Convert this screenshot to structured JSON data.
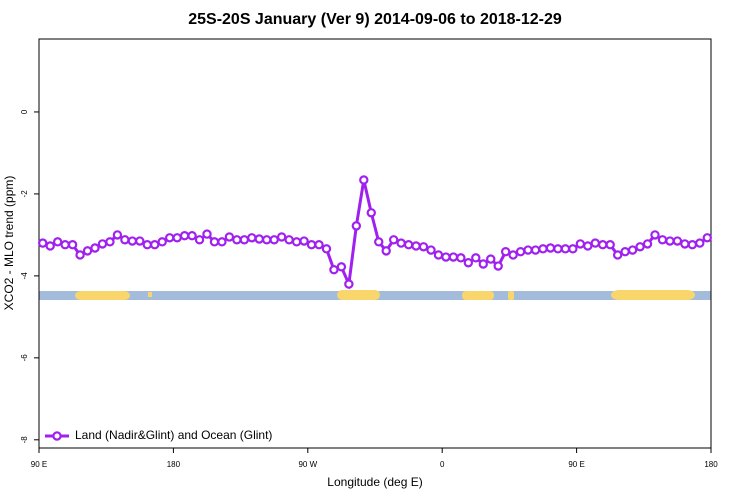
{
  "chart_data": {
    "type": "line",
    "title": "25S-20S January (Ver 9)   2014-09-06 to 2018-12-29",
    "x_label": "Longitude (deg E)",
    "y_label": "XCO2 - MLO trend (ppm)",
    "xlim": [
      90,
      540
    ],
    "xticks": [
      {
        "value": 90,
        "label": "90 E"
      },
      180,
      {
        "value": 270,
        "label": "90 W"
      },
      {
        "value": 360,
        "label": "0"
      },
      {
        "value": 450,
        "label": "90 E"
      },
      {
        "value": 540,
        "label": "180"
      }
    ],
    "ylim": [
      -8.2,
      1.78
    ],
    "yticks": [
      0,
      -2,
      -4,
      -6,
      -8
    ],
    "legend": "bottom-left",
    "x": [
      92.5,
      97.5,
      102.5,
      107.5,
      112.5,
      117.5,
      122.5,
      127.5,
      132.5,
      137.5,
      142.5,
      147.5,
      152.5,
      157.5,
      162.5,
      167.5,
      172.5,
      177.5,
      182.5,
      187.5,
      192.5,
      197.5,
      202.5,
      207.5,
      212.5,
      217.5,
      222.5,
      227.5,
      232.5,
      237.5,
      242.5,
      247.5,
      252.5,
      257.5,
      262.5,
      267.5,
      272.5,
      277.5,
      282.5,
      287.5,
      292.5,
      297.5,
      302.5,
      307.5,
      312.5,
      317.5,
      322.5,
      327.5,
      332.5,
      337.5,
      342.5,
      347.5,
      352.5,
      357.5,
      362.5,
      367.5,
      372.5,
      377.5,
      382.5,
      387.5,
      392.5,
      397.5,
      402.5,
      407.5,
      412.5,
      417.5,
      422.5,
      427.5,
      432.5,
      437.5,
      442.5,
      447.5,
      452.5,
      457.5,
      462.5,
      467.5,
      472.5,
      477.5,
      482.5,
      487.5,
      492.5,
      497.5,
      502.5,
      507.5,
      512.5,
      517.5,
      522.5,
      527.5,
      532.5,
      537.5
    ],
    "series": [
      {
        "name": "Land (Nadir&Glint) and Ocean (Glint)",
        "color": "#a020f0",
        "values": [
          -3.2,
          -3.27,
          -3.17,
          -3.24,
          -3.24,
          -3.49,
          -3.39,
          -3.32,
          -3.22,
          -3.17,
          -3.0,
          -3.12,
          -3.15,
          -3.15,
          -3.24,
          -3.24,
          -3.17,
          -3.07,
          -3.07,
          -3.02,
          -3.02,
          -3.12,
          -2.98,
          -3.17,
          -3.17,
          -3.05,
          -3.12,
          -3.12,
          -3.07,
          -3.1,
          -3.12,
          -3.12,
          -3.05,
          -3.12,
          -3.17,
          -3.15,
          -3.24,
          -3.24,
          -3.34,
          -3.85,
          -3.78,
          -4.2,
          -2.78,
          -1.66,
          -2.46,
          -3.17,
          -3.39,
          -3.12,
          -3.2,
          -3.24,
          -3.27,
          -3.29,
          -3.37,
          -3.49,
          -3.54,
          -3.54,
          -3.56,
          -3.68,
          -3.56,
          -3.71,
          -3.59,
          -3.76,
          -3.41,
          -3.49,
          -3.41,
          -3.37,
          -3.37,
          -3.34,
          -3.32,
          -3.34,
          -3.34,
          -3.34,
          -3.22,
          -3.27,
          -3.2,
          -3.24,
          -3.24,
          -3.49,
          -3.41,
          -3.37,
          -3.29,
          -3.22,
          -3.0,
          -3.12,
          -3.15,
          -3.15,
          -3.22,
          -3.24,
          -3.2,
          -3.07
        ]
      }
    ]
  }
}
